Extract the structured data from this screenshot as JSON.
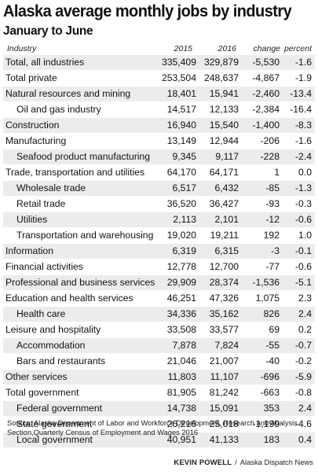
{
  "title": "Alaska average monthly jobs by industry",
  "subtitle": "January to June",
  "source": "Source: Alaska Department of Labor and Workforce Development, Research and Analysis Section,Quarterly Census of Employment and Wages 2016",
  "credit": {
    "author": "KEVIN POWELL",
    "separator": "/",
    "outlet": "Alaska Dispatch News"
  },
  "chart_data": {
    "type": "table",
    "columns": [
      "Industry",
      "2015",
      "2016",
      "change",
      "percent"
    ],
    "rows": [
      {
        "name": "Total, all industries",
        "sub": false,
        "v2015": "335,409",
        "v2016": "329,879",
        "change": "-5,530",
        "percent": "-1.6"
      },
      {
        "name": "Total private",
        "sub": false,
        "v2015": "253,504",
        "v2016": "248,637",
        "change": "-4,867",
        "percent": "-1.9"
      },
      {
        "name": "Natural resources and mining",
        "sub": false,
        "v2015": "18,401",
        "v2016": "15,941",
        "change": "-2,460",
        "percent": "-13.4"
      },
      {
        "name": "Oil and gas industry",
        "sub": true,
        "v2015": "14,517",
        "v2016": "12,133",
        "change": "-2,384",
        "percent": "-16.4"
      },
      {
        "name": "Construction",
        "sub": false,
        "v2015": "16,940",
        "v2016": "15,540",
        "change": "-1,400",
        "percent": "-8.3"
      },
      {
        "name": "Manufacturing",
        "sub": false,
        "v2015": "13,149",
        "v2016": "12,944",
        "change": "-206",
        "percent": "-1.6"
      },
      {
        "name": "Seafood product manufacturing",
        "sub": true,
        "v2015": "9,345",
        "v2016": "9,117",
        "change": "-228",
        "percent": "-2.4"
      },
      {
        "name": "Trade, transportation and utilities",
        "sub": false,
        "v2015": "64,170",
        "v2016": "64,171",
        "change": "1",
        "percent": "0.0"
      },
      {
        "name": "Wholesale trade",
        "sub": true,
        "v2015": "6,517",
        "v2016": "6,432",
        "change": "-85",
        "percent": "-1.3"
      },
      {
        "name": "Retail trade",
        "sub": true,
        "v2015": "36,520",
        "v2016": "36,427",
        "change": "-93",
        "percent": "-0.3"
      },
      {
        "name": "Utilities",
        "sub": true,
        "v2015": "2,113",
        "v2016": "2,101",
        "change": "-12",
        "percent": "-0.6"
      },
      {
        "name": "Transportation and warehousing",
        "sub": true,
        "v2015": "19,020",
        "v2016": "19,211",
        "change": "192",
        "percent": "1.0"
      },
      {
        "name": "Information",
        "sub": false,
        "v2015": "6,319",
        "v2016": "6,315",
        "change": "-3",
        "percent": "-0.1"
      },
      {
        "name": "Financial activities",
        "sub": false,
        "v2015": "12,778",
        "v2016": "12,700",
        "change": "-77",
        "percent": "-0.6"
      },
      {
        "name": "Professional and business services",
        "sub": false,
        "v2015": "29,909",
        "v2016": "28,374",
        "change": "-1,536",
        "percent": "-5.1"
      },
      {
        "name": "Education and health services",
        "sub": false,
        "v2015": "46,251",
        "v2016": "47,326",
        "change": "1,075",
        "percent": "2.3"
      },
      {
        "name": "Health care",
        "sub": true,
        "v2015": "34,336",
        "v2016": "35,162",
        "change": "826",
        "percent": "2.4"
      },
      {
        "name": "Leisure and hospitality",
        "sub": false,
        "v2015": "33,508",
        "v2016": "33,577",
        "change": "69",
        "percent": "0.2"
      },
      {
        "name": "Accommodation",
        "sub": true,
        "v2015": "7,878",
        "v2016": "7,824",
        "change": "-55",
        "percent": "-0.7"
      },
      {
        "name": "Bars and restaurants",
        "sub": true,
        "v2015": "21,046",
        "v2016": "21,007",
        "change": "-40",
        "percent": "-0.2"
      },
      {
        "name": "Other services",
        "sub": false,
        "v2015": "11,803",
        "v2016": "11,107",
        "change": "-696",
        "percent": "-5.9"
      },
      {
        "name": "Total government",
        "sub": false,
        "v2015": "81,905",
        "v2016": "81,242",
        "change": "-663",
        "percent": "-0.8"
      },
      {
        "name": "Federal government",
        "sub": true,
        "v2015": "14,738",
        "v2016": "15,091",
        "change": "353",
        "percent": "2.4"
      },
      {
        "name": "State government",
        "sub": true,
        "v2015": "26,216",
        "v2016": "25,018",
        "change": "-1,199",
        "percent": "-4.6"
      },
      {
        "name": "Local government",
        "sub": true,
        "v2015": "40,951",
        "v2016": "41,133",
        "change": "183",
        "percent": "0.4"
      }
    ]
  }
}
